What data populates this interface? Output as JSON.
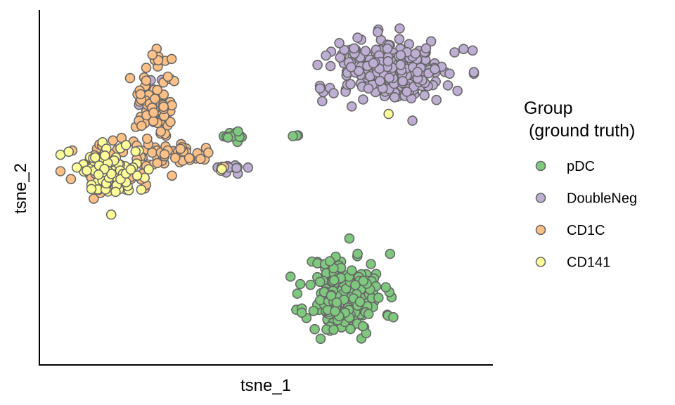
{
  "chart_data": {
    "type": "scatter",
    "title": "",
    "xlabel": "tsne_1",
    "ylabel": "tsne_2",
    "xlim": [
      0,
      100
    ],
    "ylim": [
      0,
      100
    ],
    "axis_ticks_shown": false,
    "grid": false,
    "legend": {
      "placement": "right",
      "title_lines": [
        "Group",
        " (ground truth)"
      ]
    },
    "series": [
      {
        "name": "pDC",
        "color": "#7fc97f",
        "clusters": [
          {
            "cx": 68.5,
            "cy": 18.0,
            "sx": 4.6,
            "sy": 6.2,
            "n": 200,
            "seed": 11
          },
          {
            "cx": 42.0,
            "cy": 65.5,
            "sx": 1.4,
            "sy": 1.0,
            "n": 10,
            "seed": 21
          },
          {
            "cx": 56.6,
            "cy": 65.3,
            "sx": 0.5,
            "sy": 0.5,
            "n": 3,
            "seed": 31
          }
        ]
      },
      {
        "name": "DoubleNeg",
        "color": "#beaed4",
        "clusters": [
          {
            "cx": 80.0,
            "cy": 85.0,
            "sx": 6.8,
            "sy": 4.8,
            "n": 250,
            "seed": 12
          },
          {
            "cx": 41.0,
            "cy": 56.0,
            "sx": 2.0,
            "sy": 0.9,
            "n": 12,
            "seed": 22
          },
          {
            "cx": 23.5,
            "cy": 75.0,
            "sx": 1.4,
            "sy": 3.8,
            "n": 15,
            "seed": 32
          },
          {
            "cx": 6.0,
            "cy": 56.0,
            "sx": 0.9,
            "sy": 0.6,
            "n": 3,
            "seed": 42
          }
        ]
      },
      {
        "name": "CD1C",
        "color": "#fdc086",
        "clusters": [
          {
            "cx": 23.5,
            "cy": 74.0,
            "sx": 2.6,
            "sy": 8.5,
            "n": 90,
            "seed": 13
          },
          {
            "cx": 14.0,
            "cy": 56.0,
            "sx": 4.8,
            "sy": 3.6,
            "n": 60,
            "seed": 23
          },
          {
            "cx": 30.0,
            "cy": 60.0,
            "sx": 2.8,
            "sy": 1.3,
            "n": 25,
            "seed": 33
          },
          {
            "cx": 39.0,
            "cy": 56.0,
            "sx": 0.6,
            "sy": 0.5,
            "n": 3,
            "seed": 43
          }
        ]
      },
      {
        "name": "CD141",
        "color": "#ffff99",
        "clusters": [
          {
            "cx": 13.5,
            "cy": 55.0,
            "sx": 4.4,
            "sy": 4.0,
            "n": 85,
            "seed": 14
          },
          {
            "cx": 40.0,
            "cy": 56.0,
            "sx": 0.6,
            "sy": 0.5,
            "n": 2,
            "seed": 24
          },
          {
            "cx": 79.0,
            "cy": 71.8,
            "sx": 0.2,
            "sy": 0.2,
            "n": 1,
            "seed": 34
          }
        ]
      }
    ]
  }
}
